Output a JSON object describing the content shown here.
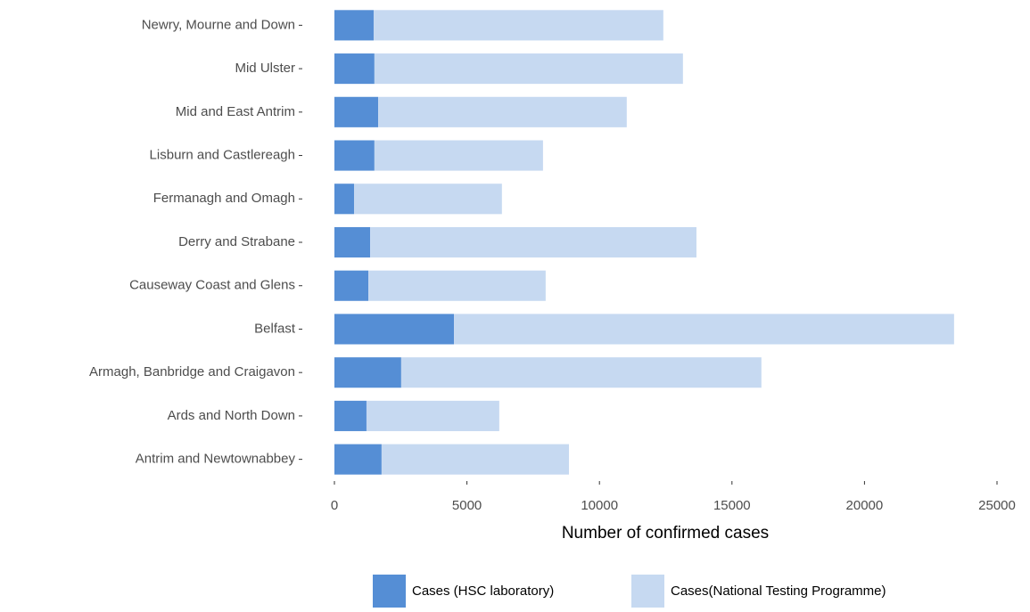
{
  "chart_data": {
    "type": "stacked-bar-horizontal",
    "x_label": "Number of confirmed cases",
    "categories": [
      "Newry, Mourne and Down",
      "Mid Ulster",
      "Mid and East Antrim",
      "Lisburn and Castlereagh",
      "Fermanagh and Omagh",
      "Derry and Strabane",
      "Causeway Coast and Glens",
      "Belfast",
      "Armagh, Banbridge and Craigavon",
      "Ards and North Down",
      "Antrim and Newtownabbey"
    ],
    "series": [
      {
        "name": "Cases (HSC laboratory)",
        "color": "#558ed5",
        "values": [
          1480,
          1510,
          1650,
          1510,
          740,
          1350,
          1280,
          4510,
          2520,
          1210,
          1780
        ]
      },
      {
        "name": "Cases(National Testing Programme)",
        "color": "#c6d9f1",
        "values": [
          10930,
          11640,
          9380,
          6360,
          5580,
          12310,
          6690,
          18870,
          13590,
          5010,
          7070
        ]
      }
    ],
    "xlim": [
      0,
      25000
    ],
    "xticks": [
      0,
      5000,
      10000,
      15000,
      20000,
      25000
    ],
    "legend": "bottom"
  }
}
